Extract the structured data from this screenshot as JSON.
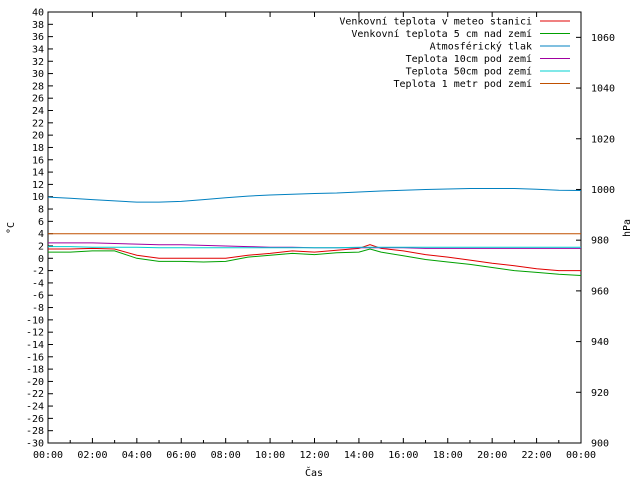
{
  "chart_data": {
    "type": "line",
    "xlabel": "Čas",
    "ylabel_left": "°C",
    "ylabel_right": "hPa",
    "ylim_left": [
      -30,
      40
    ],
    "ylim_right": [
      900,
      1070
    ],
    "x_ticks": [
      "00:00",
      "02:00",
      "04:00",
      "06:00",
      "08:00",
      "10:00",
      "12:00",
      "14:00",
      "16:00",
      "18:00",
      "20:00",
      "22:00",
      "00:00"
    ],
    "y_ticks_left": [
      40,
      38,
      36,
      34,
      32,
      30,
      28,
      26,
      24,
      22,
      20,
      18,
      16,
      14,
      12,
      10,
      8,
      6,
      4,
      2,
      0,
      -2,
      -4,
      -6,
      -8,
      -10,
      -12,
      -14,
      -16,
      -18,
      -20,
      -22,
      -24,
      -26,
      -28,
      -30
    ],
    "y_ticks_right": [
      1060,
      1040,
      1020,
      1000,
      980,
      960,
      940,
      920,
      900
    ],
    "x_hours": [
      0,
      1,
      2,
      3,
      4,
      5,
      6,
      7,
      8,
      9,
      10,
      11,
      12,
      13,
      14,
      14.5,
      15,
      16,
      17,
      18,
      19,
      20,
      21,
      22,
      23,
      24
    ],
    "series": [
      {
        "name": "Venkovní teplota v meteo stanici",
        "color": "#e00000",
        "axis": "left",
        "values": [
          1.5,
          1.5,
          1.6,
          1.5,
          0.5,
          0,
          0,
          0,
          0,
          0.5,
          0.8,
          1.2,
          1.0,
          1.3,
          1.6,
          2.2,
          1.6,
          1.2,
          0.6,
          0.2,
          -0.3,
          -0.8,
          -1.2,
          -1.7,
          -2.0,
          -2.0
        ]
      },
      {
        "name": "Venkovní teplota 5 cm nad zemí",
        "color": "#00a000",
        "axis": "left",
        "values": [
          1.0,
          1.0,
          1.2,
          1.2,
          0,
          -0.5,
          -0.5,
          -0.6,
          -0.5,
          0.2,
          0.5,
          0.8,
          0.6,
          0.9,
          1.0,
          1.5,
          1.0,
          0.4,
          -0.2,
          -0.6,
          -1.0,
          -1.5,
          -2.0,
          -2.3,
          -2.6,
          -2.8
        ]
      },
      {
        "name": "Atmosférický tlak",
        "color": "#0080c0",
        "axis": "right",
        "values": [
          997,
          996.5,
          996,
          995.5,
          995,
          995,
          995.3,
          996,
          996.7,
          997.4,
          997.8,
          998.1,
          998.4,
          998.6,
          999,
          999.2,
          999.4,
          999.7,
          1000,
          1000.2,
          1000.4,
          1000.4,
          1000.4,
          1000.1,
          999.7,
          999.6
        ]
      },
      {
        "name": "Teplota 10cm pod zemí",
        "color": "#a000a0",
        "axis": "left",
        "values": [
          2.5,
          2.5,
          2.5,
          2.4,
          2.3,
          2.2,
          2.2,
          2.1,
          2.0,
          1.9,
          1.8,
          1.8,
          1.7,
          1.7,
          1.7,
          1.7,
          1.7,
          1.7,
          1.6,
          1.6,
          1.6,
          1.6,
          1.6,
          1.6,
          1.6,
          1.6
        ]
      },
      {
        "name": "Teplota 50cm pod zemí",
        "color": "#00d0d0",
        "axis": "left",
        "values": [
          1.9,
          1.9,
          1.8,
          1.8,
          1.8,
          1.7,
          1.7,
          1.7,
          1.7,
          1.7,
          1.7,
          1.7,
          1.7,
          1.7,
          1.8,
          1.8,
          1.8,
          1.8,
          1.8,
          1.8,
          1.8,
          1.8,
          1.8,
          1.8,
          1.8,
          1.8
        ]
      },
      {
        "name": "Teplota 1 metr pod zemí",
        "color": "#c05000",
        "axis": "left",
        "values": [
          4.0,
          4.0,
          4.0,
          4.0,
          4.0,
          4.0,
          4.0,
          4.0,
          4.0,
          4.0,
          4.0,
          4.0,
          4.0,
          4.0,
          4.0,
          4.0,
          4.0,
          4.0,
          4.0,
          4.0,
          4.0,
          4.0,
          4.0,
          4.0,
          4.0,
          4.0
        ]
      }
    ],
    "legend": "top-right",
    "grid": false
  }
}
